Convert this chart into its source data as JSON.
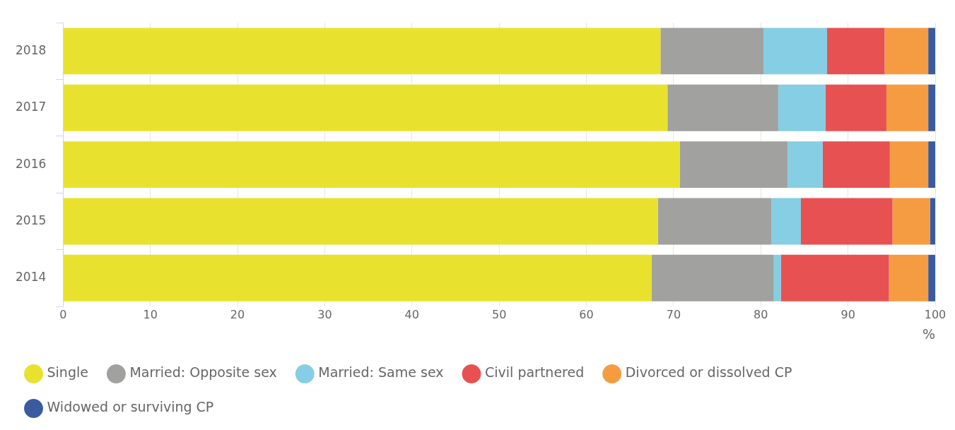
{
  "chart_data": {
    "type": "bar",
    "orientation": "horizontal",
    "stacked": true,
    "categories": [
      "2018",
      "2017",
      "2016",
      "2015",
      "2014"
    ],
    "xlabel": "%",
    "xlim": [
      0,
      100
    ],
    "xticks": [
      0,
      10,
      20,
      30,
      40,
      50,
      60,
      70,
      80,
      90,
      100
    ],
    "grid": "x",
    "legend": "bottom",
    "marker": "circle",
    "series": [
      {
        "name": "Single",
        "color": "#e8e22e",
        "values": [
          68.5,
          69.3,
          70.7,
          68.2,
          67.5
        ]
      },
      {
        "name": "Married: Opposite sex",
        "color": "#a1a19f",
        "values": [
          11.8,
          12.7,
          12.4,
          13.0,
          14.0
        ]
      },
      {
        "name": "Married: Same sex",
        "color": "#86cee3",
        "values": [
          7.3,
          5.4,
          4.0,
          3.4,
          0.8
        ]
      },
      {
        "name": "Civil partnered",
        "color": "#e85152",
        "values": [
          6.6,
          7.0,
          7.7,
          10.5,
          12.4
        ]
      },
      {
        "name": "Divorced or dissolved CP",
        "color": "#f59c42",
        "values": [
          5.0,
          4.8,
          4.4,
          4.3,
          4.5
        ]
      },
      {
        "name": "Widowed or surviving CP",
        "color": "#3a5ba0",
        "values": [
          0.8,
          0.8,
          0.8,
          0.6,
          0.8
        ]
      }
    ]
  }
}
